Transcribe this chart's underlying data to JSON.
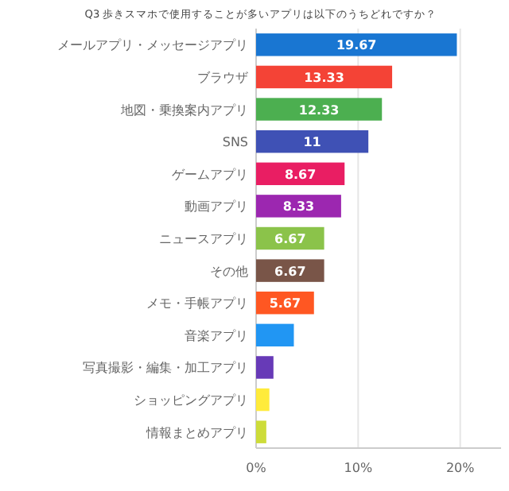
{
  "chart_data": {
    "type": "bar",
    "orientation": "horizontal",
    "title": "Q3 歩きスマホで使用することが多いアプリは以下のうちどれですか？",
    "categories": [
      "メールアプリ・メッセージアプリ",
      "ブラウザ",
      "地図・乗換案内アプリ",
      "SNS",
      "ゲームアプリ",
      "動画アプリ",
      "ニュースアプリ",
      "その他",
      "メモ・手帳アプリ",
      "音楽アプリ",
      "写真撮影・編集・加工アプリ",
      "ショッピングアプリ",
      "情報まとめアプリ"
    ],
    "values": [
      19.67,
      13.33,
      12.33,
      11,
      8.67,
      8.33,
      6.67,
      6.67,
      5.67,
      3.7,
      1.7,
      1.3,
      1
    ],
    "value_labels": [
      "19.67",
      "13.33",
      "12.33",
      "11",
      "8.67",
      "8.33",
      "6.67",
      "6.67",
      "5.67",
      null,
      null,
      null,
      null
    ],
    "colors": [
      "#1976d2",
      "#f44336",
      "#4caf50",
      "#3f51b5",
      "#e91e63",
      "#9c27b0",
      "#8bc34a",
      "#795548",
      "#ff5722",
      "#2196f3",
      "#673ab7",
      "#ffeb3b",
      "#cddc39"
    ],
    "xlim": [
      0,
      24
    ],
    "xticks": [
      {
        "value": 0,
        "label": "0%"
      },
      {
        "value": 10,
        "label": "10%"
      },
      {
        "value": 20,
        "label": "20%"
      }
    ],
    "grid": "x"
  }
}
